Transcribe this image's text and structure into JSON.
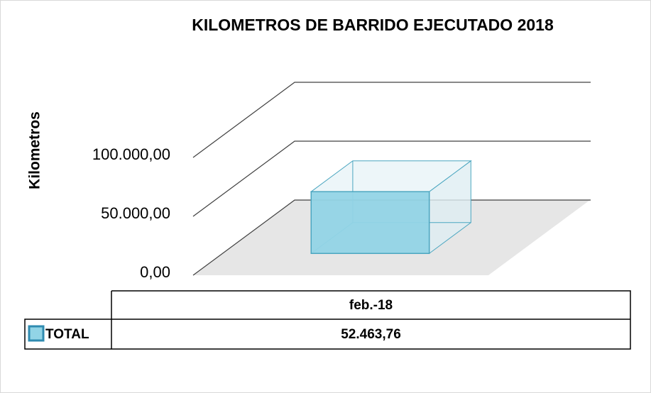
{
  "chart_data": {
    "type": "bar3d",
    "title": "KILOMETROS DE BARRIDO EJECUTADO 2018",
    "y_label": "Kilometros",
    "categories": [
      "feb.-18"
    ],
    "series": [
      {
        "name": "TOTAL",
        "color": "#92d4e6",
        "values": [
          52463.76
        ],
        "value_labels": [
          "52.463,76"
        ]
      }
    ],
    "ylim": [
      0,
      100000
    ],
    "yticks": [
      {
        "value": 0,
        "label": "0,00"
      },
      {
        "value": 50000,
        "label": "50.000,00"
      },
      {
        "value": 100000,
        "label": "100.000,00"
      }
    ],
    "grid": true,
    "data_table": true
  }
}
